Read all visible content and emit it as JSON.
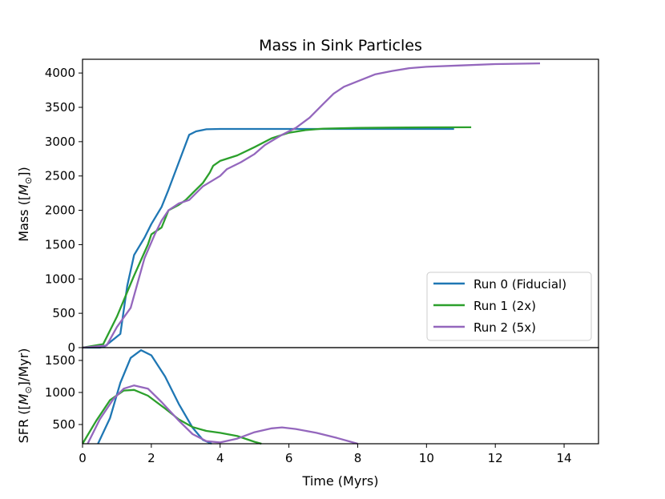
{
  "chart_data": [
    {
      "type": "line",
      "title": "Mass in Sink Particles",
      "xlabel": "",
      "ylabel": "Mass ([M$_{\\odot}$])",
      "ylabel_text": "Mass ([",
      "ylabel_symbol": "M",
      "ylabel_sub": "⊙",
      "ylabel_end": "])",
      "xlim": [
        0,
        15
      ],
      "ylim": [
        0,
        4200
      ],
      "yticks": [
        0,
        500,
        1000,
        1500,
        2000,
        2500,
        3000,
        3500,
        4000
      ],
      "legend": {
        "location": "lower-right",
        "entries": [
          "Run 0 (Fiducial)",
          "Run 1 (2x)",
          "Run 2 (5x)"
        ]
      },
      "series": [
        {
          "name": "Run 0 (Fiducial)",
          "color": "#1f77b4",
          "points": [
            [
              0,
              0
            ],
            [
              0.5,
              0
            ],
            [
              0.65,
              20
            ],
            [
              1.1,
              200
            ],
            [
              1.3,
              900
            ],
            [
              1.5,
              1350
            ],
            [
              1.8,
              1600
            ],
            [
              2.0,
              1800
            ],
            [
              2.3,
              2050
            ],
            [
              2.5,
              2300
            ],
            [
              2.8,
              2700
            ],
            [
              3.1,
              3100
            ],
            [
              3.3,
              3150
            ],
            [
              3.6,
              3180
            ],
            [
              4.0,
              3185
            ],
            [
              5.0,
              3185
            ],
            [
              6.0,
              3185
            ],
            [
              7.0,
              3185
            ],
            [
              8.0,
              3185
            ],
            [
              9.0,
              3185
            ],
            [
              10.0,
              3185
            ],
            [
              10.8,
              3185
            ]
          ]
        },
        {
          "name": "Run 1 (2x)",
          "color": "#2ca02c",
          "points": [
            [
              0,
              0
            ],
            [
              0.6,
              50
            ],
            [
              1.0,
              450
            ],
            [
              1.5,
              1050
            ],
            [
              1.9,
              1500
            ],
            [
              2.0,
              1650
            ],
            [
              2.3,
              1750
            ],
            [
              2.5,
              2000
            ],
            [
              2.8,
              2080
            ],
            [
              3.0,
              2150
            ],
            [
              3.2,
              2250
            ],
            [
              3.5,
              2400
            ],
            [
              3.7,
              2550
            ],
            [
              3.8,
              2650
            ],
            [
              4.0,
              2720
            ],
            [
              4.5,
              2800
            ],
            [
              5.0,
              2920
            ],
            [
              5.5,
              3050
            ],
            [
              6.0,
              3130
            ],
            [
              6.5,
              3170
            ],
            [
              7.0,
              3190
            ],
            [
              8.0,
              3200
            ],
            [
              9.0,
              3205
            ],
            [
              10.0,
              3208
            ],
            [
              11.3,
              3210
            ]
          ]
        },
        {
          "name": "Run 2 (5x)",
          "color": "#9467bd",
          "points": [
            [
              0,
              0
            ],
            [
              0.7,
              30
            ],
            [
              1.0,
              300
            ],
            [
              1.4,
              580
            ],
            [
              1.8,
              1300
            ],
            [
              2.1,
              1650
            ],
            [
              2.3,
              1850
            ],
            [
              2.5,
              2000
            ],
            [
              2.8,
              2100
            ],
            [
              3.1,
              2150
            ],
            [
              3.5,
              2350
            ],
            [
              4.0,
              2500
            ],
            [
              4.2,
              2600
            ],
            [
              4.6,
              2700
            ],
            [
              5.0,
              2820
            ],
            [
              5.3,
              2950
            ],
            [
              5.8,
              3100
            ],
            [
              6.2,
              3200
            ],
            [
              6.6,
              3350
            ],
            [
              7.0,
              3550
            ],
            [
              7.3,
              3700
            ],
            [
              7.6,
              3800
            ],
            [
              8.0,
              3880
            ],
            [
              8.5,
              3980
            ],
            [
              9.0,
              4030
            ],
            [
              9.5,
              4070
            ],
            [
              10.0,
              4090
            ],
            [
              11.0,
              4110
            ],
            [
              12.0,
              4130
            ],
            [
              13.3,
              4140
            ]
          ]
        }
      ]
    },
    {
      "type": "line",
      "title": "",
      "xlabel": "Time (Myrs)",
      "ylabel": "SFR ([M$_{\\odot}$]/Myr)",
      "ylabel_text": "SFR ([",
      "ylabel_symbol": "M",
      "ylabel_sub": "⊙",
      "ylabel_end": "]/Myr)",
      "xlim": [
        0,
        15
      ],
      "ylim": [
        200,
        1700
      ],
      "xticks": [
        0,
        2,
        4,
        6,
        8,
        10,
        12,
        14
      ],
      "yticks": [
        500,
        1000,
        1500
      ],
      "series": [
        {
          "name": "Run 0 (Fiducial)",
          "color": "#1f77b4",
          "points": [
            [
              0.45,
              200
            ],
            [
              0.8,
              600
            ],
            [
              1.1,
              1150
            ],
            [
              1.4,
              1540
            ],
            [
              1.7,
              1660
            ],
            [
              2.0,
              1580
            ],
            [
              2.4,
              1250
            ],
            [
              2.8,
              820
            ],
            [
              3.2,
              450
            ],
            [
              3.5,
              260
            ],
            [
              3.75,
              200
            ]
          ]
        },
        {
          "name": "Run 1 (2x)",
          "color": "#2ca02c",
          "points": [
            [
              0,
              200
            ],
            [
              0.4,
              560
            ],
            [
              0.8,
              880
            ],
            [
              1.2,
              1030
            ],
            [
              1.5,
              1040
            ],
            [
              1.9,
              950
            ],
            [
              2.4,
              750
            ],
            [
              2.8,
              580
            ],
            [
              3.2,
              460
            ],
            [
              3.6,
              400
            ],
            [
              4.0,
              370
            ],
            [
              4.5,
              320
            ],
            [
              5.0,
              230
            ],
            [
              5.2,
              200
            ]
          ]
        },
        {
          "name": "Run 2 (5x)",
          "color": "#9467bd",
          "points": [
            [
              0.15,
              200
            ],
            [
              0.5,
              580
            ],
            [
              0.9,
              900
            ],
            [
              1.2,
              1060
            ],
            [
              1.5,
              1110
            ],
            [
              1.9,
              1060
            ],
            [
              2.3,
              850
            ],
            [
              2.8,
              560
            ],
            [
              3.2,
              350
            ],
            [
              3.6,
              240
            ],
            [
              4.0,
              220
            ],
            [
              4.5,
              280
            ],
            [
              5.0,
              380
            ],
            [
              5.5,
              440
            ],
            [
              5.8,
              455
            ],
            [
              6.2,
              430
            ],
            [
              6.8,
              370
            ],
            [
              7.4,
              290
            ],
            [
              8.0,
              200
            ]
          ]
        }
      ]
    }
  ]
}
